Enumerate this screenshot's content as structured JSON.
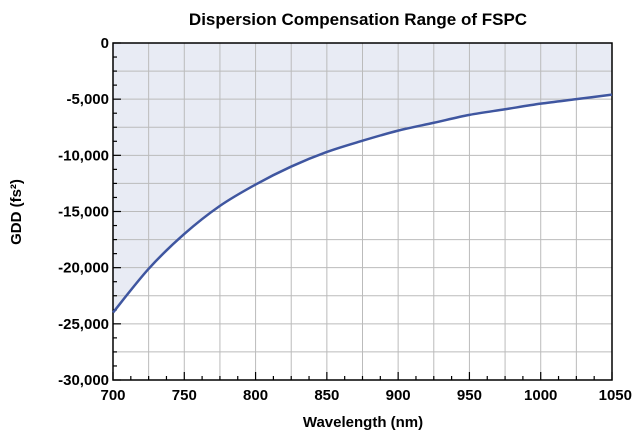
{
  "chart_data": {
    "type": "area",
    "title": "Dispersion Compensation Range of FSPC",
    "xlabel": "Wavelength (nm)",
    "ylabel": "GDD (fs²)",
    "xlim": [
      700,
      1050
    ],
    "ylim": [
      -30000,
      0
    ],
    "x_ticks": [
      700,
      750,
      800,
      850,
      900,
      950,
      1000,
      1050
    ],
    "x_tick_labels": [
      "700",
      "750",
      "800",
      "850",
      "900",
      "950",
      "1000",
      "1050"
    ],
    "y_ticks": [
      0,
      -5000,
      -10000,
      -15000,
      -20000,
      -25000,
      -30000
    ],
    "y_tick_labels": [
      "0",
      "-5,000",
      "-10,000",
      "-15,000",
      "-20,000",
      "-25,000",
      "-30,000"
    ],
    "grid": true,
    "fill": "between curve and 0",
    "series": [
      {
        "x": [
          700,
          725,
          750,
          775,
          800,
          825,
          850,
          875,
          900,
          925,
          950,
          975,
          1000,
          1025,
          1050
        ],
        "y": [
          -24000,
          -20100,
          -17000,
          -14500,
          -12600,
          -11000,
          -9700,
          -8700,
          -7800,
          -7100,
          -6400,
          -5900,
          -5400,
          -5000,
          -4600
        ]
      }
    ],
    "colors": {
      "line": "#3f56a0",
      "fill": "#e8ebf4",
      "grid": "#bbbbbb",
      "axis": "#000000"
    }
  }
}
